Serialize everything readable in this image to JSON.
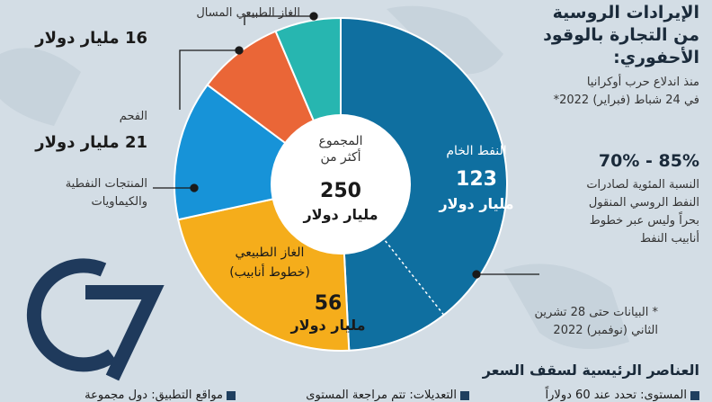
{
  "header": {
    "title_lines": [
      "الإيرادات الروسية",
      "من التجارة بالوقود",
      "الأحفوري:"
    ],
    "subtitle_lines": [
      "منذ اندلاع حرب أوكرانيا",
      "في 24 شباط (فبراير) 2022*"
    ]
  },
  "share": {
    "range": "70% - 85%",
    "desc_lines": [
      "النسبة المئوية لصادرات",
      "النفط الروسي المنقول",
      "بحراً وليس عبر خطوط",
      "أنابيب النفط"
    ]
  },
  "footnote_lines": [
    "* البيانات حتى 28 تشرين",
    "الثاني (نوفمبر) 2022"
  ],
  "center": {
    "line1": "المجموع",
    "line2": "أكثر من",
    "value": "250",
    "unit": "مليار دولار"
  },
  "labels": {
    "lng": {
      "name": "الغاز الطبيعي المسال",
      "value": "16 مليار دولار"
    },
    "coal": {
      "name": "الفحم",
      "value": "21 مليار دولار"
    },
    "products": {
      "name_lines": [
        "المنتجات النفطية",
        "والكيماويات"
      ]
    },
    "crude": {
      "name": "النفط الخام",
      "value": "123",
      "unit": "مليار دولار"
    },
    "pipeline_gas": {
      "name_lines": [
        "الغاز الطبيعي",
        "(خطوط أنابيب)"
      ],
      "value": "56",
      "unit": "مليار دولار"
    }
  },
  "chart_data": {
    "type": "pie",
    "donut": true,
    "categories": [
      "النفط الخام",
      "الغاز الطبيعي (خطوط أنابيب)",
      "المنتجات النفطية والكيماويات",
      "الفحم",
      "الغاز الطبيعي المسال"
    ],
    "values": [
      123,
      56,
      34,
      21,
      16
    ],
    "colors": [
      "#0f6fa0",
      "#f5ad1b",
      "#1793d8",
      "#ea6637",
      "#27b6b0"
    ],
    "crude_subsplit": {
      "seaborne_share_range": [
        70,
        85
      ]
    }
  },
  "legend": {
    "heading": "العناصر الرئيسية لسقف السعر",
    "items": [
      "المستوى: تحدد عند 60 دولاراً",
      "التعديلات: تتم مراجعة المستوى",
      "مواقع التطبيق: دول مجموعة"
    ]
  },
  "logo": "G7"
}
